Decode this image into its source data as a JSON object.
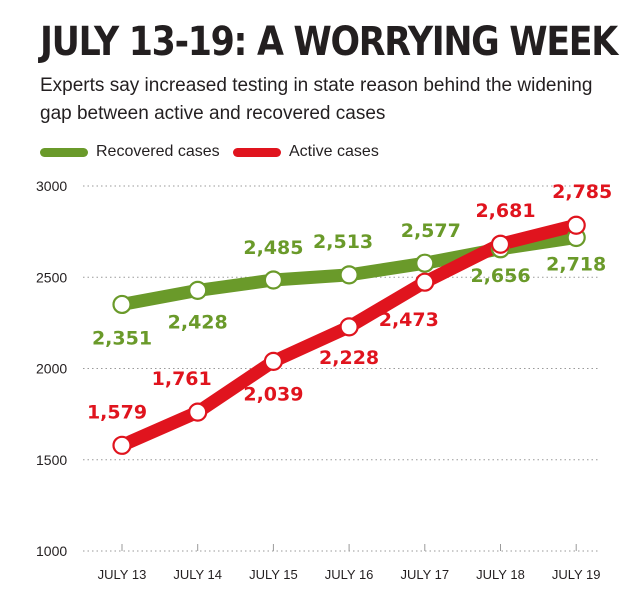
{
  "chart_data": {
    "type": "line",
    "title": "JULY 13-19: A WORRYING WEEK",
    "subtitle": "Experts say increased testing in state reason behind the widening gap between active and recovered cases",
    "categories": [
      "JULY 13",
      "JULY 14",
      "JULY 15",
      "JULY 16",
      "JULY 17",
      "JULY 18",
      "JULY 19"
    ],
    "series": [
      {
        "name": "Recovered cases",
        "color": "#6a9a2a",
        "values": [
          2351,
          2428,
          2485,
          2513,
          2577,
          2656,
          2718
        ],
        "labels": [
          "2,351",
          "2,428",
          "2,485",
          "2,513",
          "2,577",
          "2,656",
          "2,718"
        ]
      },
      {
        "name": "Active cases",
        "color": "#e0141e",
        "values": [
          1579,
          1761,
          2039,
          2228,
          2473,
          2681,
          2785
        ],
        "labels": [
          "1,579",
          "1,761",
          "2,039",
          "2,228",
          "2,473",
          "2,681",
          "2,785"
        ]
      }
    ],
    "y_ticks": [
      "3000",
      "2500",
      "2000",
      "1500",
      "1000"
    ],
    "ylim": [
      1000,
      3000
    ],
    "grid": true,
    "legend_position": "top-left",
    "xlabel": "",
    "ylabel": ""
  }
}
